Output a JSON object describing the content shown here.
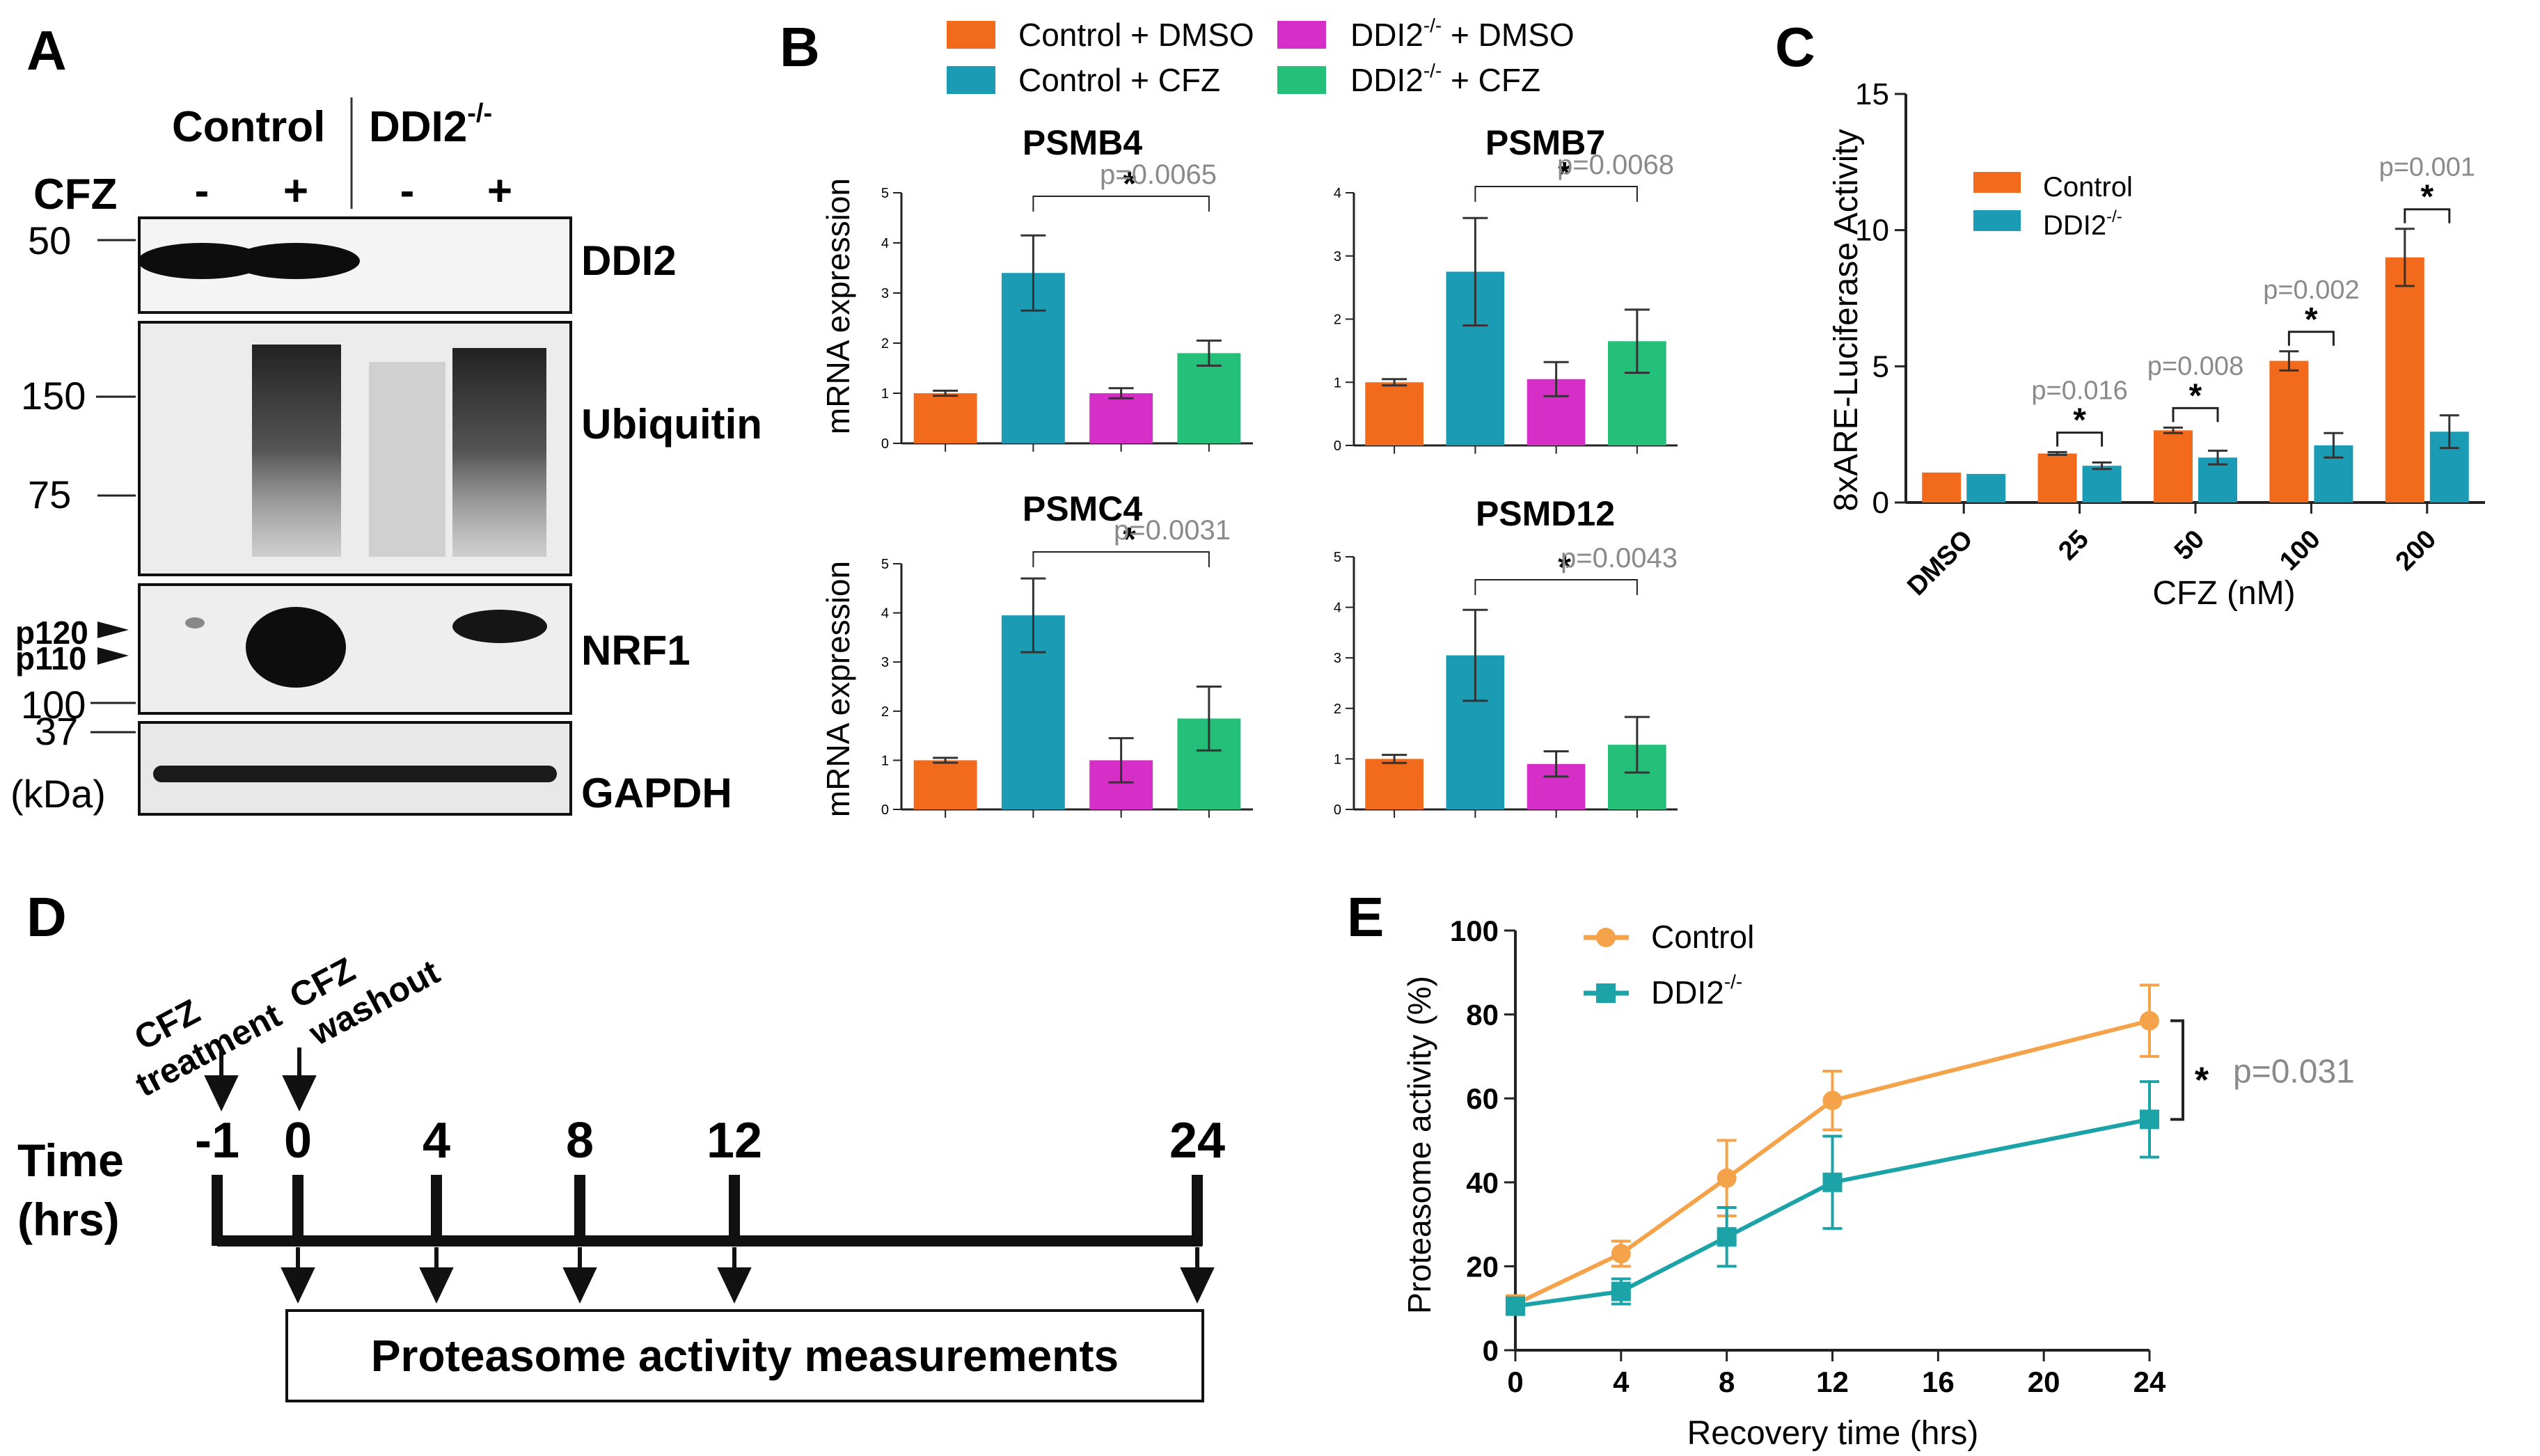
{
  "colors": {
    "control_dmso": "#f26b1c",
    "control_cfz": "#1c9cb4",
    "ddi2_dmso": "#d62fc7",
    "ddi2_cfz": "#24c07a",
    "control_line": "#f5a34a",
    "ddi2_line": "#1ba3a8",
    "pvalue": "#8a8a8a",
    "axis": "#222222"
  },
  "panel_labels": {
    "a": "A",
    "b": "B",
    "c": "C",
    "d": "D",
    "e": "E"
  },
  "panel_a": {
    "group_control": "Control",
    "group_ddi2": "DDI2",
    "group_ddi2_sup": "-/-",
    "treatment": "CFZ",
    "signs": [
      "-",
      "+",
      "-",
      "+"
    ],
    "blots": [
      "DDI2",
      "Ubiquitin",
      "NRF1",
      "GAPDH"
    ],
    "markers": [
      "50",
      "150",
      "75",
      "100",
      "37"
    ],
    "kda": "(kDa)",
    "bands": [
      "p120",
      "p110"
    ]
  },
  "legend_b": {
    "items": [
      {
        "name": "Control + DMSO",
        "pre": "Control + DMSO",
        "sup": "",
        "post": ""
      },
      {
        "name": "DDI2-/- + DMSO",
        "pre": "DDI2",
        "sup": "-/-",
        "post": " + DMSO"
      },
      {
        "name": "Control + CFZ",
        "pre": "Control + CFZ",
        "sup": "",
        "post": ""
      },
      {
        "name": "DDI2-/- + CFZ",
        "pre": "DDI2",
        "sup": "-/-",
        "post": " + CFZ"
      }
    ]
  },
  "chart_data": [
    {
      "id": "B1",
      "type": "bar",
      "title": "PSMB4",
      "ylabel": "mRNA expression",
      "ylim": [
        0,
        5
      ],
      "yticks": [
        "0",
        "1",
        "2",
        "3",
        "4",
        "5"
      ],
      "categories": [
        "Control + DMSO",
        "Control + CFZ",
        "DDI2-/- + DMSO",
        "DDI2-/- + CFZ"
      ],
      "values": [
        1.0,
        3.4,
        1.0,
        1.8
      ],
      "errors": [
        0.05,
        0.75,
        0.1,
        0.25
      ],
      "star": "*",
      "pvalue": "p=0.0065"
    },
    {
      "id": "B2",
      "type": "bar",
      "title": "PSMB7",
      "ylabel": "",
      "ylim": [
        0,
        4
      ],
      "yticks": [
        "0",
        "1",
        "2",
        "3",
        "4"
      ],
      "categories": [
        "Control + DMSO",
        "Control + CFZ",
        "DDI2-/- + DMSO",
        "DDI2-/- + CFZ"
      ],
      "values": [
        1.0,
        2.75,
        1.05,
        1.65
      ],
      "errors": [
        0.05,
        0.85,
        0.27,
        0.5
      ],
      "star": "*",
      "pvalue": "p=0.0068"
    },
    {
      "id": "B3",
      "type": "bar",
      "title": "PSMC4",
      "ylabel": "mRNA expression",
      "ylim": [
        0,
        5
      ],
      "yticks": [
        "0",
        "1",
        "2",
        "3",
        "4",
        "5"
      ],
      "categories": [
        "Control + DMSO",
        "Control + CFZ",
        "DDI2-/- + DMSO",
        "DDI2-/- + CFZ"
      ],
      "values": [
        1.0,
        3.95,
        1.0,
        1.85
      ],
      "errors": [
        0.05,
        0.75,
        0.45,
        0.65
      ],
      "star": "*",
      "pvalue": "p=0.0031"
    },
    {
      "id": "B4",
      "type": "bar",
      "title": "PSMD12",
      "ylabel": "",
      "ylim": [
        0,
        5
      ],
      "yticks": [
        "0",
        "1",
        "2",
        "3",
        "4",
        "5"
      ],
      "categories": [
        "Control + DMSO",
        "Control + CFZ",
        "DDI2-/- + DMSO",
        "DDI2-/- + CFZ"
      ],
      "values": [
        1.0,
        3.05,
        0.9,
        1.28
      ],
      "errors": [
        0.08,
        0.9,
        0.25,
        0.55
      ],
      "star": "*",
      "pvalue": "p=0.0043"
    },
    {
      "id": "C",
      "type": "bar",
      "ylabel": "8xARE-Luciferase Activity",
      "xlabel": "CFZ (nM)",
      "ylim": [
        0,
        15
      ],
      "yticks": [
        "0",
        "5",
        "10",
        "15"
      ],
      "categories": [
        "DMSO",
        "25",
        "50",
        "100",
        "200"
      ],
      "legend": [
        {
          "name": "Control",
          "sup": ""
        },
        {
          "name": "DDI2",
          "sup": "-/-"
        }
      ],
      "series": [
        {
          "name": "Control",
          "values": [
            1.1,
            1.8,
            2.65,
            5.2,
            9.0
          ],
          "errors": [
            0,
            0.05,
            0.1,
            0.35,
            1.05
          ]
        },
        {
          "name": "DDI2-/-",
          "values": [
            1.05,
            1.35,
            1.65,
            2.1,
            2.6
          ],
          "errors": [
            0,
            0.12,
            0.25,
            0.45,
            0.6
          ]
        }
      ],
      "significance": [
        {
          "category": "DMSO",
          "star": "",
          "pvalue": ""
        },
        {
          "category": "25",
          "star": "*",
          "pvalue": "p=0.016"
        },
        {
          "category": "50",
          "star": "*",
          "pvalue": "p=0.008"
        },
        {
          "category": "100",
          "star": "*",
          "pvalue": "p=0.002"
        },
        {
          "category": "200",
          "star": "*",
          "pvalue": "p=0.001"
        }
      ]
    },
    {
      "id": "E",
      "type": "line",
      "ylabel": "Proteasome activity (%)",
      "xlabel": "Recovery time (hrs)",
      "ylim": [
        0,
        100
      ],
      "xlim": [
        0,
        24
      ],
      "yticks": [
        "0",
        "20",
        "40",
        "60",
        "80",
        "100"
      ],
      "xticks": [
        "0",
        "4",
        "8",
        "12",
        "16",
        "20",
        "24"
      ],
      "x": [
        0,
        4,
        8,
        12,
        24
      ],
      "legend": [
        {
          "name": "Control",
          "sup": ""
        },
        {
          "name": "DDI2",
          "sup": "-/-"
        }
      ],
      "series": [
        {
          "name": "Control",
          "values": [
            11,
            23,
            41,
            59.5,
            78.5
          ],
          "errors": [
            2,
            3,
            9,
            7,
            8.5
          ]
        },
        {
          "name": "DDI2-/-",
          "values": [
            10.5,
            14,
            27,
            40,
            55
          ],
          "errors": [
            1.5,
            3,
            7,
            11,
            9
          ]
        }
      ],
      "star": "*",
      "pvalue": "p=0.031"
    }
  ],
  "panel_d": {
    "event1_line1": "CFZ",
    "event1_line2": "treatment",
    "event2_line1": "CFZ",
    "event2_line2": "washout",
    "axis_label_line1": "Time",
    "axis_label_line2": "(hrs)",
    "timepoints": [
      "-1",
      "0",
      "4",
      "8",
      "12",
      "24"
    ],
    "box_label": "Proteasome activity measurements"
  }
}
